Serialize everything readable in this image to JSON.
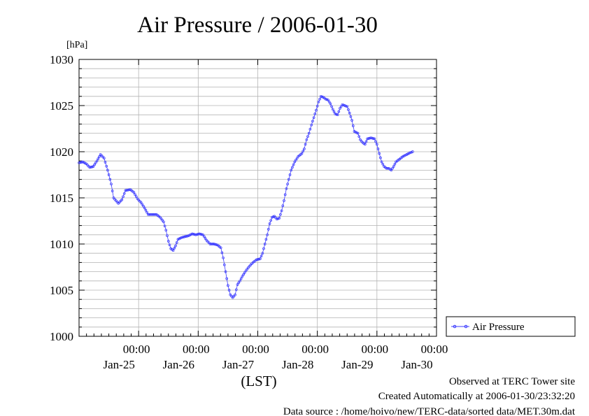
{
  "chart_data": {
    "type": "line",
    "title": "Air Pressure / 2006-01-30",
    "ylabel": "[hPa]",
    "xlabel": "(LST)",
    "ylim": [
      1000,
      1030
    ],
    "y_ticks": [
      "1000",
      "1005",
      "1010",
      "1015",
      "1020",
      "1025",
      "1030"
    ],
    "x_ticks": [
      {
        "time": "00:00",
        "date": "Jan-25",
        "day": 1
      },
      {
        "time": "00:00",
        "date": "Jan-26",
        "day": 2
      },
      {
        "time": "00:00",
        "date": "Jan-27",
        "day": 3
      },
      {
        "time": "00:00",
        "date": "Jan-28",
        "day": 4
      },
      {
        "time": "00:00",
        "date": "Jan-29",
        "day": 5
      },
      {
        "time": "00:00",
        "date": "Jan-30",
        "day": 6
      }
    ],
    "xlim_days": [
      0,
      6
    ],
    "grid": true,
    "legend_position": "right",
    "series": [
      {
        "name": "Air Pressure",
        "color": "#3b3bff",
        "marker": "circle",
        "points": [
          [
            0.0,
            1018.8
          ],
          [
            0.06,
            1018.9
          ],
          [
            0.12,
            1018.7
          ],
          [
            0.18,
            1018.3
          ],
          [
            0.24,
            1018.4
          ],
          [
            0.3,
            1019.0
          ],
          [
            0.36,
            1019.7
          ],
          [
            0.42,
            1019.3
          ],
          [
            0.48,
            1018.0
          ],
          [
            0.54,
            1016.5
          ],
          [
            0.58,
            1015.0
          ],
          [
            0.62,
            1014.7
          ],
          [
            0.66,
            1014.4
          ],
          [
            0.72,
            1014.8
          ],
          [
            0.78,
            1015.8
          ],
          [
            0.86,
            1015.9
          ],
          [
            0.92,
            1015.6
          ],
          [
            0.98,
            1014.9
          ],
          [
            1.04,
            1014.5
          ],
          [
            1.1,
            1013.9
          ],
          [
            1.16,
            1013.2
          ],
          [
            1.24,
            1013.2
          ],
          [
            1.3,
            1013.2
          ],
          [
            1.36,
            1012.9
          ],
          [
            1.42,
            1012.4
          ],
          [
            1.46,
            1011.5
          ],
          [
            1.5,
            1010.3
          ],
          [
            1.54,
            1009.5
          ],
          [
            1.58,
            1009.3
          ],
          [
            1.62,
            1009.8
          ],
          [
            1.66,
            1010.5
          ],
          [
            1.72,
            1010.7
          ],
          [
            1.78,
            1010.8
          ],
          [
            1.84,
            1010.9
          ],
          [
            1.9,
            1011.1
          ],
          [
            1.96,
            1011.0
          ],
          [
            2.02,
            1011.1
          ],
          [
            2.08,
            1011.0
          ],
          [
            2.14,
            1010.4
          ],
          [
            2.2,
            1010.0
          ],
          [
            2.26,
            1010.0
          ],
          [
            2.32,
            1009.9
          ],
          [
            2.38,
            1009.6
          ],
          [
            2.42,
            1008.5
          ],
          [
            2.46,
            1007.0
          ],
          [
            2.5,
            1005.5
          ],
          [
            2.54,
            1004.5
          ],
          [
            2.58,
            1004.2
          ],
          [
            2.62,
            1004.5
          ],
          [
            2.66,
            1005.6
          ],
          [
            2.7,
            1006.0
          ],
          [
            2.74,
            1006.5
          ],
          [
            2.8,
            1007.1
          ],
          [
            2.86,
            1007.6
          ],
          [
            2.92,
            1008.0
          ],
          [
            2.98,
            1008.3
          ],
          [
            3.04,
            1008.4
          ],
          [
            3.08,
            1009.0
          ],
          [
            3.12,
            1010.0
          ],
          [
            3.16,
            1011.0
          ],
          [
            3.2,
            1012.2
          ],
          [
            3.24,
            1012.9
          ],
          [
            3.28,
            1013.0
          ],
          [
            3.32,
            1012.7
          ],
          [
            3.36,
            1012.8
          ],
          [
            3.4,
            1013.6
          ],
          [
            3.44,
            1014.7
          ],
          [
            3.48,
            1016.0
          ],
          [
            3.52,
            1017.0
          ],
          [
            3.56,
            1018.0
          ],
          [
            3.62,
            1018.9
          ],
          [
            3.68,
            1019.5
          ],
          [
            3.74,
            1019.8
          ],
          [
            3.78,
            1020.3
          ],
          [
            3.82,
            1021.3
          ],
          [
            3.86,
            1022.0
          ],
          [
            3.9,
            1022.9
          ],
          [
            3.94,
            1023.7
          ],
          [
            3.98,
            1024.5
          ],
          [
            4.02,
            1025.4
          ],
          [
            4.06,
            1026.0
          ],
          [
            4.1,
            1025.9
          ],
          [
            4.14,
            1025.7
          ],
          [
            4.18,
            1025.6
          ],
          [
            4.22,
            1025.2
          ],
          [
            4.26,
            1024.6
          ],
          [
            4.3,
            1024.1
          ],
          [
            4.34,
            1024.0
          ],
          [
            4.38,
            1024.7
          ],
          [
            4.42,
            1025.1
          ],
          [
            4.46,
            1025.0
          ],
          [
            4.5,
            1024.9
          ],
          [
            4.54,
            1024.2
          ],
          [
            4.58,
            1023.4
          ],
          [
            4.62,
            1022.2
          ],
          [
            4.68,
            1022.0
          ],
          [
            4.72,
            1021.3
          ],
          [
            4.76,
            1021.0
          ],
          [
            4.8,
            1020.8
          ],
          [
            4.84,
            1021.4
          ],
          [
            4.9,
            1021.5
          ],
          [
            4.96,
            1021.4
          ],
          [
            5.0,
            1020.8
          ],
          [
            5.04,
            1019.8
          ],
          [
            5.08,
            1018.9
          ],
          [
            5.12,
            1018.4
          ],
          [
            5.16,
            1018.2
          ],
          [
            5.2,
            1018.2
          ],
          [
            5.24,
            1018.0
          ],
          [
            5.28,
            1018.4
          ],
          [
            5.32,
            1018.9
          ],
          [
            5.38,
            1019.2
          ],
          [
            5.44,
            1019.5
          ],
          [
            5.5,
            1019.7
          ],
          [
            5.56,
            1019.9
          ],
          [
            5.6,
            1020.0
          ]
        ]
      }
    ]
  },
  "legend": {
    "label": "Air Pressure"
  },
  "footer": {
    "line1": "Observed at TERC Tower site",
    "line2": "Created Automatically at 2006-01-30/23:32:20",
    "line3": "Data source : /home/hoivo/new/TERC-data/sorted  data/MET.30m.dat"
  }
}
